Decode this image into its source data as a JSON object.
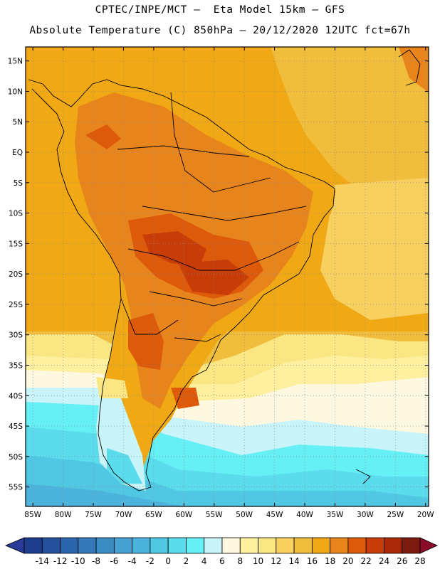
{
  "title_line1": "CPTEC/INPE/MCT –  Eta Model 15km – GFS",
  "title_line2": "Absolute Temperature (C) 850hPa – 20/12/2020 12UTC fct=67h",
  "lat_labels": [
    "15N",
    "10N",
    "5N",
    "EQ",
    "5S",
    "10S",
    "15S",
    "20S",
    "25S",
    "30S",
    "35S",
    "40S",
    "45S",
    "50S",
    "55S"
  ],
  "lat_values": [
    15,
    10,
    5,
    0,
    -5,
    -10,
    -15,
    -20,
    -25,
    -30,
    -35,
    -40,
    -45,
    -50,
    -55
  ],
  "lon_labels": [
    "85W",
    "80W",
    "75W",
    "70W",
    "65W",
    "60W",
    "55W",
    "50W",
    "45W",
    "40W",
    "35W",
    "30W",
    "25W",
    "20W"
  ],
  "lon_values": [
    -85,
    -80,
    -75,
    -70,
    -65,
    -60,
    -55,
    -50,
    -45,
    -40,
    -35,
    -30,
    -25,
    -20
  ],
  "colorbar": {
    "labels": [
      "-14",
      "-12",
      "-10",
      "-8",
      "-6",
      "-4",
      "-2",
      "0",
      "2",
      "4",
      "6",
      "8",
      "10",
      "12",
      "14",
      "16",
      "18",
      "20",
      "22",
      "24",
      "26",
      "28"
    ],
    "colors": [
      "#1e3c8c",
      "#24509c",
      "#2a64ac",
      "#3478b8",
      "#3c8cc4",
      "#46a0d0",
      "#4cb4dc",
      "#50c8e4",
      "#5adcec",
      "#64f0f4",
      "#c8f4fa",
      "#fff8e0",
      "#fff0a0",
      "#fae682",
      "#f8d060",
      "#f0be3c",
      "#f0a814",
      "#e8841c",
      "#dc5a0a",
      "#c83c08",
      "#a82808",
      "#7c1c10"
    ],
    "under_color": "#2a3a98",
    "over_color": "#8a0a2a"
  }
}
